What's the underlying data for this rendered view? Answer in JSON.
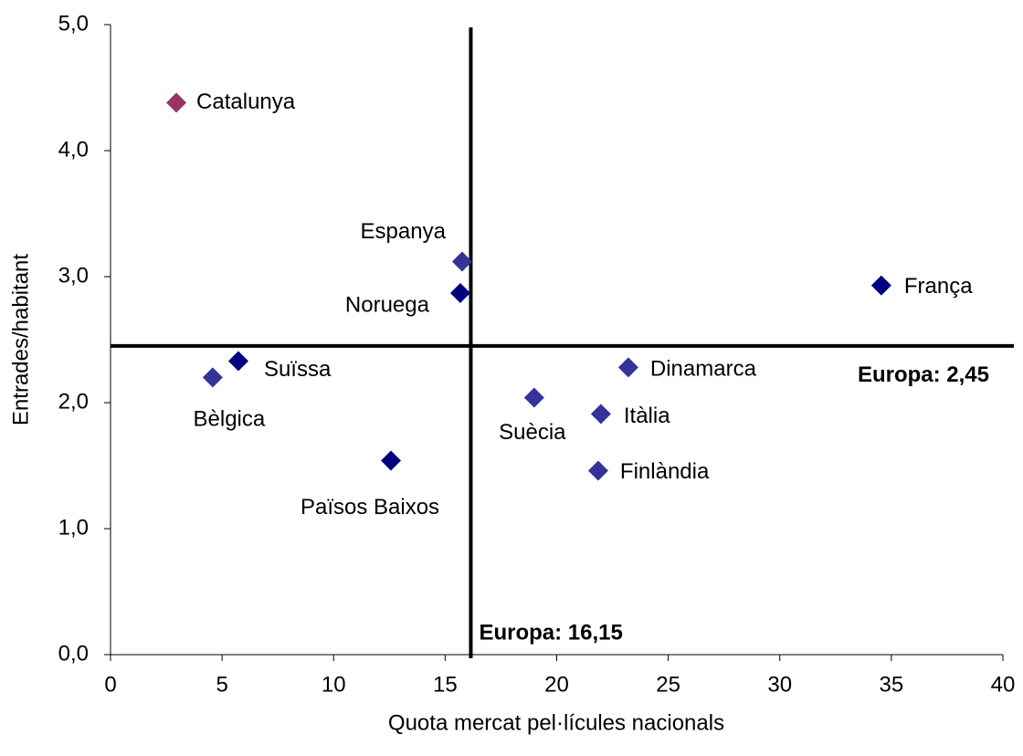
{
  "chart_data": {
    "type": "scatter",
    "xlabel": "Quota mercat pel·lícules nacionals",
    "ylabel": "Entrades/habitant",
    "xlim": [
      0,
      40
    ],
    "ylim": [
      0,
      5
    ],
    "xticks": [
      0,
      5,
      10,
      15,
      20,
      25,
      30,
      35,
      40
    ],
    "yticks": [
      {
        "value": 0,
        "label": "0,0"
      },
      {
        "value": 1,
        "label": "1,0"
      },
      {
        "value": 2,
        "label": "2,0"
      },
      {
        "value": 3,
        "label": "3,0"
      },
      {
        "value": 4,
        "label": "4,0"
      },
      {
        "value": 5,
        "label": "5,0"
      }
    ],
    "points": [
      {
        "label": "Catalunya",
        "x": 2.95,
        "y": 4.38,
        "color": "#993366"
      },
      {
        "label": "Espanya",
        "x": 15.76,
        "y": 3.12,
        "color": "#333399"
      },
      {
        "label": "Noruega",
        "x": 15.68,
        "y": 2.87,
        "color": "#000080"
      },
      {
        "label": "França",
        "x": 34.55,
        "y": 2.93,
        "color": "#000080"
      },
      {
        "label": "Suïssa",
        "x": 5.73,
        "y": 2.33,
        "color": "#000080"
      },
      {
        "label": "Bèlgica",
        "x": 4.58,
        "y": 2.2,
        "color": "#333399"
      },
      {
        "label": "Països Baixos",
        "x": 12.57,
        "y": 1.54,
        "color": "#000080"
      },
      {
        "label": "Dinamarca",
        "x": 23.21,
        "y": 2.28,
        "color": "#333399"
      },
      {
        "label": "Suècia",
        "x": 18.99,
        "y": 2.04,
        "color": "#333399"
      },
      {
        "label": "Itàlia",
        "x": 21.98,
        "y": 1.91,
        "color": "#333399"
      },
      {
        "label": "Finlàndia",
        "x": 21.86,
        "y": 1.46,
        "color": "#333399"
      }
    ],
    "reference_lines": [
      {
        "axis": "x",
        "value": 16.15,
        "label": "Europa: 16,15"
      },
      {
        "axis": "y",
        "value": 2.45,
        "label": "Europa: 2,45"
      }
    ]
  }
}
